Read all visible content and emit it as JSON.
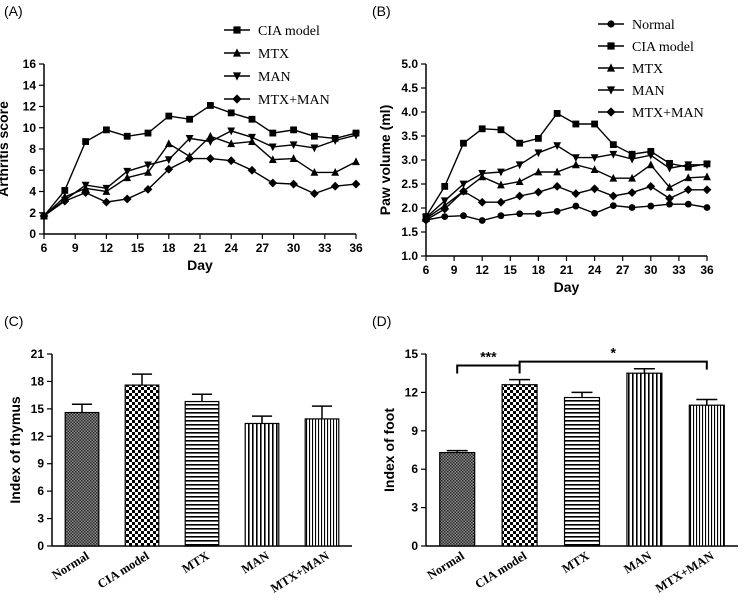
{
  "chart_data": [
    {
      "panel_label": "(A)",
      "type": "line",
      "xlabel": "Day",
      "ylabel": "Arthritis score",
      "xlim": [
        6,
        36
      ],
      "ylim": [
        0,
        16
      ],
      "xticks": [
        "6",
        "9",
        "12",
        "15",
        "18",
        "21",
        "24",
        "27",
        "30",
        "33",
        "36"
      ],
      "yticks": [
        "0",
        "2",
        "4",
        "6",
        "8",
        "10",
        "12",
        "14",
        "16"
      ],
      "x": [
        6,
        8,
        10,
        12,
        14,
        16,
        18,
        20,
        22,
        24,
        26,
        28,
        30,
        32,
        34,
        36
      ],
      "legend_position": "top-right",
      "series": [
        {
          "name": "CIA model",
          "marker": "square",
          "values": [
            1.7,
            4.1,
            8.7,
            9.8,
            9.2,
            9.5,
            11.1,
            10.8,
            12.1,
            11.4,
            10.8,
            9.5,
            9.8,
            9.2,
            9.0,
            9.5
          ]
        },
        {
          "name": "MTX",
          "marker": "triangle-up",
          "values": [
            1.7,
            3.5,
            4.3,
            4.0,
            5.3,
            5.8,
            8.5,
            7.3,
            9.2,
            8.5,
            8.7,
            7.0,
            7.1,
            5.8,
            5.8,
            6.8
          ]
        },
        {
          "name": "MAN",
          "marker": "triangle-down",
          "values": [
            1.7,
            3.2,
            4.6,
            4.3,
            5.9,
            6.5,
            7.0,
            9.0,
            8.7,
            9.7,
            9.1,
            8.2,
            8.4,
            8.1,
            8.8,
            9.3
          ]
        },
        {
          "name": "MTX+MAN",
          "marker": "diamond",
          "values": [
            1.7,
            3.1,
            3.9,
            3.0,
            3.3,
            4.2,
            6.1,
            7.1,
            7.1,
            6.9,
            6.0,
            4.8,
            4.7,
            3.8,
            4.5,
            4.7
          ]
        }
      ]
    },
    {
      "panel_label": "(B)",
      "type": "line",
      "xlabel": "Day",
      "ylabel": "Paw volume (ml)",
      "xlim": [
        6,
        36
      ],
      "ylim": [
        1.0,
        5.0
      ],
      "xticks": [
        "6",
        "9",
        "12",
        "15",
        "18",
        "21",
        "24",
        "27",
        "30",
        "33",
        "36"
      ],
      "yticks": [
        "1.0",
        "1.5",
        "2.0",
        "2.5",
        "3.0",
        "3.5",
        "4.0",
        "4.5",
        "5.0"
      ],
      "x": [
        6,
        8,
        10,
        12,
        14,
        16,
        18,
        20,
        22,
        24,
        26,
        28,
        30,
        32,
        34,
        36
      ],
      "legend_position": "top-right",
      "series": [
        {
          "name": "Normal",
          "marker": "circle",
          "values": [
            1.75,
            1.82,
            1.84,
            1.74,
            1.84,
            1.88,
            1.88,
            1.93,
            2.04,
            1.89,
            2.05,
            2.01,
            2.04,
            2.08,
            2.08,
            2.01
          ]
        },
        {
          "name": "CIA model",
          "marker": "square",
          "values": [
            1.82,
            2.45,
            3.35,
            3.65,
            3.63,
            3.35,
            3.45,
            3.97,
            3.75,
            3.75,
            3.32,
            3.12,
            3.18,
            2.93,
            2.85,
            2.92
          ]
        },
        {
          "name": "MTX",
          "marker": "triangle-up",
          "values": [
            1.78,
            2.05,
            2.35,
            2.65,
            2.48,
            2.55,
            2.75,
            2.75,
            2.9,
            2.8,
            2.62,
            2.62,
            2.9,
            2.43,
            2.63,
            2.65
          ]
        },
        {
          "name": "MAN",
          "marker": "triangle-down",
          "values": [
            1.8,
            2.15,
            2.5,
            2.72,
            2.75,
            2.9,
            3.15,
            3.3,
            3.05,
            3.05,
            3.12,
            3.02,
            3.1,
            2.83,
            2.9,
            2.9
          ]
        },
        {
          "name": "MTX+MAN",
          "marker": "diamond",
          "values": [
            1.75,
            1.98,
            2.35,
            2.12,
            2.12,
            2.25,
            2.33,
            2.45,
            2.3,
            2.4,
            2.25,
            2.32,
            2.45,
            2.2,
            2.38,
            2.38
          ]
        }
      ]
    },
    {
      "panel_label": "(C)",
      "type": "bar",
      "ylabel": "Index of thymus",
      "ylim": [
        0,
        21
      ],
      "yticks": [
        "0",
        "3",
        "6",
        "9",
        "12",
        "15",
        "18",
        "21"
      ],
      "categories": [
        "Normal",
        "CIA model",
        "MTX",
        "MAN",
        "MTX+MAN"
      ],
      "values": [
        14.6,
        17.6,
        15.8,
        13.4,
        13.9
      ],
      "errors": [
        0.9,
        1.2,
        0.8,
        0.8,
        1.4
      ],
      "patterns": [
        "dense",
        "checker",
        "horizontal",
        "vertical",
        "fine-vertical"
      ]
    },
    {
      "panel_label": "(D)",
      "type": "bar",
      "ylabel": "Index of foot",
      "ylim": [
        0,
        15
      ],
      "yticks": [
        "0",
        "3",
        "6",
        "9",
        "12",
        "15"
      ],
      "categories": [
        "Normal",
        "CIA model",
        "MTX",
        "MAN",
        "MTX+MAN"
      ],
      "values": [
        7.3,
        12.6,
        11.6,
        13.5,
        11.0
      ],
      "errors": [
        0.15,
        0.4,
        0.4,
        0.35,
        0.45
      ],
      "patterns": [
        "dense",
        "checker",
        "horizontal",
        "vertical",
        "fine-vertical"
      ],
      "annotations": [
        {
          "from": "Normal",
          "to": "CIA model",
          "label": "***"
        },
        {
          "from": "CIA model",
          "to": "MTX+MAN",
          "label": "*"
        }
      ]
    }
  ]
}
